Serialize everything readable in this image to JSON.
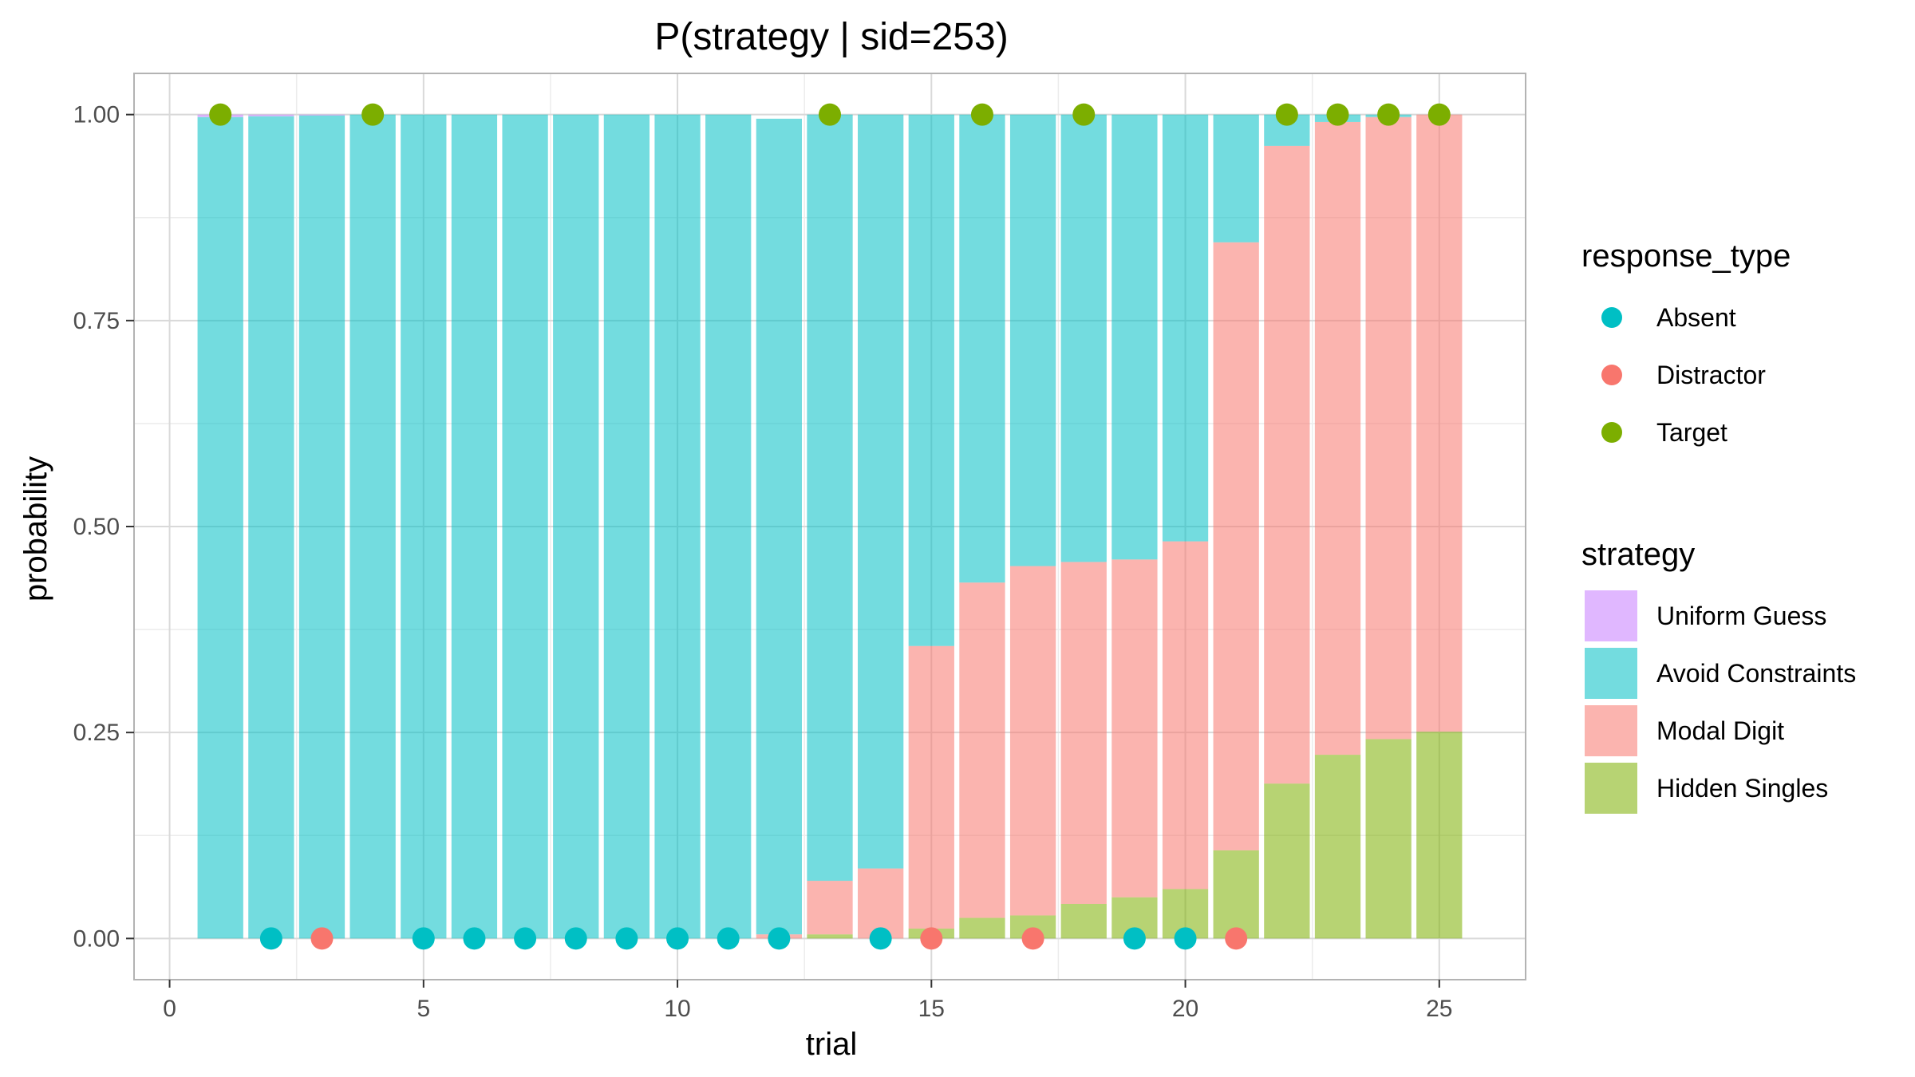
{
  "chart_data": {
    "type": "bar",
    "title": "P(strategy | sid=253)",
    "xlabel": "trial",
    "ylabel": "probability",
    "xlim": [
      -0.7,
      26.7
    ],
    "ylim": [
      -0.05,
      1.05
    ],
    "x_ticks": [
      0,
      5,
      10,
      15,
      20,
      25
    ],
    "y_ticks": [
      0.0,
      0.25,
      0.5,
      0.75,
      1.0
    ],
    "x_tick_labels": [
      "0",
      "5",
      "10",
      "15",
      "20",
      "25"
    ],
    "y_tick_labels": [
      "0.00",
      "0.25",
      "0.50",
      "0.75",
      "1.00"
    ],
    "grid": true,
    "stacked": true,
    "trials": [
      1,
      2,
      3,
      4,
      5,
      6,
      7,
      8,
      9,
      10,
      11,
      12,
      13,
      14,
      15,
      16,
      17,
      18,
      19,
      20,
      21,
      22,
      23,
      24,
      25
    ],
    "series": [
      {
        "name": "Hidden Singles",
        "color": "#7CAE00",
        "values": [
          0,
          0,
          0,
          0,
          0,
          0,
          0,
          0,
          0,
          0,
          0,
          0,
          0.005,
          0.0,
          0.012,
          0.025,
          0.028,
          0.042,
          0.05,
          0.06,
          0.107,
          0.188,
          0.223,
          0.242,
          0.251
        ]
      },
      {
        "name": "Modal Digit",
        "color": "#F8766D",
        "values": [
          0,
          0,
          0,
          0,
          0,
          0,
          0,
          0,
          0,
          0,
          0,
          0.005,
          0.065,
          0.085,
          0.343,
          0.407,
          0.424,
          0.415,
          0.41,
          0.422,
          0.738,
          0.774,
          0.768,
          0.755,
          0.749
        ]
      },
      {
        "name": "Avoid Constraints",
        "color": "#00BFC4",
        "values": [
          0.997,
          0.998,
          0.999,
          1.0,
          1.0,
          1.0,
          1.0,
          1.0,
          1.0,
          1.0,
          1.0,
          0.99,
          0.93,
          0.915,
          0.645,
          0.568,
          0.548,
          0.543,
          0.54,
          0.518,
          0.155,
          0.038,
          0.009,
          0.003,
          0.0
        ]
      },
      {
        "name": "Uniform Guess",
        "color": "#C77CFF",
        "values": [
          0.003,
          0.002,
          0.001,
          0,
          0,
          0,
          0,
          0,
          0,
          0,
          0,
          0,
          0,
          0,
          0,
          0,
          0,
          0,
          0,
          0,
          0,
          0,
          0,
          0,
          0
        ]
      }
    ],
    "strategy_legend": {
      "title": "strategy",
      "items": [
        {
          "name": "Uniform Guess",
          "color": "#C77CFF"
        },
        {
          "name": "Avoid Constraints",
          "color": "#00BFC4"
        },
        {
          "name": "Modal Digit",
          "color": "#F8766D"
        },
        {
          "name": "Hidden Singles",
          "color": "#7CAE00"
        }
      ]
    },
    "response_legend": {
      "title": "response_type",
      "items": [
        {
          "name": "Absent",
          "color": "#00BFC4"
        },
        {
          "name": "Distractor",
          "color": "#F8766D"
        },
        {
          "name": "Target",
          "color": "#7CAE00"
        }
      ]
    },
    "responses": [
      {
        "x": 1,
        "y": 1,
        "type": "Target"
      },
      {
        "x": 2,
        "y": 0,
        "type": "Absent"
      },
      {
        "x": 3,
        "y": 0,
        "type": "Distractor"
      },
      {
        "x": 4,
        "y": 1,
        "type": "Target"
      },
      {
        "x": 5,
        "y": 0,
        "type": "Absent"
      },
      {
        "x": 6,
        "y": 0,
        "type": "Absent"
      },
      {
        "x": 7,
        "y": 0,
        "type": "Absent"
      },
      {
        "x": 8,
        "y": 0,
        "type": "Absent"
      },
      {
        "x": 9,
        "y": 0,
        "type": "Absent"
      },
      {
        "x": 10,
        "y": 0,
        "type": "Absent"
      },
      {
        "x": 11,
        "y": 0,
        "type": "Absent"
      },
      {
        "x": 12,
        "y": 0,
        "type": "Absent"
      },
      {
        "x": 13,
        "y": 1,
        "type": "Target"
      },
      {
        "x": 14,
        "y": 0,
        "type": "Absent"
      },
      {
        "x": 15,
        "y": 0,
        "type": "Distractor"
      },
      {
        "x": 16,
        "y": 1,
        "type": "Target"
      },
      {
        "x": 17,
        "y": 0,
        "type": "Distractor"
      },
      {
        "x": 18,
        "y": 1,
        "type": "Target"
      },
      {
        "x": 19,
        "y": 0,
        "type": "Absent"
      },
      {
        "x": 20,
        "y": 0,
        "type": "Absent"
      },
      {
        "x": 21,
        "y": 0,
        "type": "Distractor"
      },
      {
        "x": 22,
        "y": 1,
        "type": "Target"
      },
      {
        "x": 23,
        "y": 1,
        "type": "Target"
      },
      {
        "x": 24,
        "y": 1,
        "type": "Target"
      },
      {
        "x": 25,
        "y": 1,
        "type": "Target"
      }
    ],
    "colors": {
      "panel_border": "#b3b3b3",
      "grid_major": "#d9d9d9",
      "grid_minor": "#ececec"
    }
  }
}
